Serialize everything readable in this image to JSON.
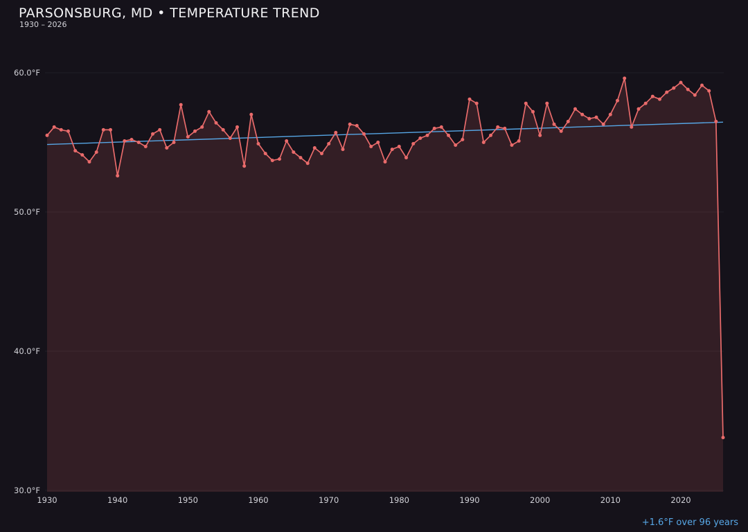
{
  "header": {
    "title": "PARSONSBURG, MD • TEMPERATURE TREND",
    "subtitle": "1930 – 2026"
  },
  "annotation": {
    "trend_label": "+1.6°F over 96 years"
  },
  "colors": {
    "background": "#15121a",
    "line": "#e96b6b",
    "marker": "#e96b6b",
    "area_fill": "rgba(233, 106, 106, 0.14)",
    "trend": "#57a7e6",
    "grid": "rgba(255, 255, 255, 0.05)",
    "tick_text": "#d2d2d8",
    "title_text": "#f2f2f4",
    "annotation_text": "#57a7e6"
  },
  "chart_data": {
    "type": "line",
    "title": "PARSONSBURG, MD • TEMPERATURE TREND",
    "subtitle": "1930 – 2026",
    "xlabel": "",
    "ylabel": "",
    "x_range": [
      1930,
      2026
    ],
    "ylim": [
      29.9,
      61.8
    ],
    "grid": "faint horizontal",
    "legend": "none",
    "x": [
      1930,
      1931,
      1932,
      1933,
      1934,
      1935,
      1936,
      1937,
      1938,
      1939,
      1940,
      1941,
      1942,
      1943,
      1944,
      1945,
      1946,
      1947,
      1948,
      1949,
      1950,
      1951,
      1952,
      1953,
      1954,
      1955,
      1956,
      1957,
      1958,
      1959,
      1960,
      1961,
      1962,
      1963,
      1964,
      1965,
      1966,
      1967,
      1968,
      1969,
      1970,
      1971,
      1972,
      1973,
      1974,
      1975,
      1976,
      1977,
      1978,
      1979,
      1980,
      1981,
      1982,
      1983,
      1984,
      1985,
      1986,
      1987,
      1988,
      1989,
      1990,
      1991,
      1992,
      1993,
      1994,
      1995,
      1996,
      1997,
      1998,
      1999,
      2000,
      2001,
      2002,
      2003,
      2004,
      2005,
      2006,
      2007,
      2008,
      2009,
      2010,
      2011,
      2012,
      2013,
      2014,
      2015,
      2016,
      2017,
      2018,
      2019,
      2020,
      2021,
      2022,
      2023,
      2024,
      2025,
      2026
    ],
    "values": [
      55.5,
      56.1,
      55.9,
      55.8,
      54.4,
      54.1,
      53.6,
      54.3,
      55.9,
      55.9,
      52.6,
      55.1,
      55.2,
      55.0,
      54.7,
      55.6,
      55.9,
      54.6,
      55.0,
      57.7,
      55.4,
      55.8,
      56.1,
      57.2,
      56.4,
      55.9,
      55.3,
      56.1,
      53.3,
      57.0,
      54.9,
      54.2,
      53.7,
      53.8,
      55.1,
      54.3,
      53.9,
      53.5,
      54.6,
      54.2,
      54.9,
      55.7,
      54.5,
      56.3,
      56.2,
      55.6,
      54.7,
      55.0,
      53.6,
      54.5,
      54.7,
      53.9,
      54.9,
      55.3,
      55.5,
      56.0,
      56.1,
      55.5,
      54.8,
      55.2,
      58.1,
      57.8,
      55.0,
      55.5,
      56.1,
      56.0,
      54.8,
      55.1,
      57.8,
      57.2,
      55.5,
      57.8,
      56.3,
      55.8,
      56.5,
      57.4,
      57.0,
      56.7,
      56.8,
      56.3,
      57.0,
      58.0,
      59.6,
      56.1,
      57.4,
      57.8,
      58.3,
      58.1,
      58.6,
      58.9,
      59.3,
      58.8,
      58.4,
      59.1,
      58.7,
      56.5,
      33.8
    ],
    "y_ticks": [
      {
        "value": 60,
        "label": "60.0°F"
      },
      {
        "value": 50,
        "label": "50.0°F"
      },
      {
        "value": 40,
        "label": "40.0°F"
      },
      {
        "value": 30,
        "label": "30.0°F"
      }
    ],
    "x_ticks": [
      {
        "value": 1930,
        "label": "1930"
      },
      {
        "value": 1940,
        "label": "1940"
      },
      {
        "value": 1950,
        "label": "1950"
      },
      {
        "value": 1960,
        "label": "1960"
      },
      {
        "value": 1970,
        "label": "1970"
      },
      {
        "value": 1980,
        "label": "1980"
      },
      {
        "value": 1990,
        "label": "1990"
      },
      {
        "value": 2000,
        "label": "2000"
      },
      {
        "value": 2010,
        "label": "2010"
      },
      {
        "value": 2020,
        "label": "2020"
      }
    ],
    "trend": {
      "start_year": 1930,
      "end_year": 2026,
      "start_value": 54.85,
      "end_value": 56.45,
      "change_label": "+1.6°F over 96 years"
    }
  }
}
